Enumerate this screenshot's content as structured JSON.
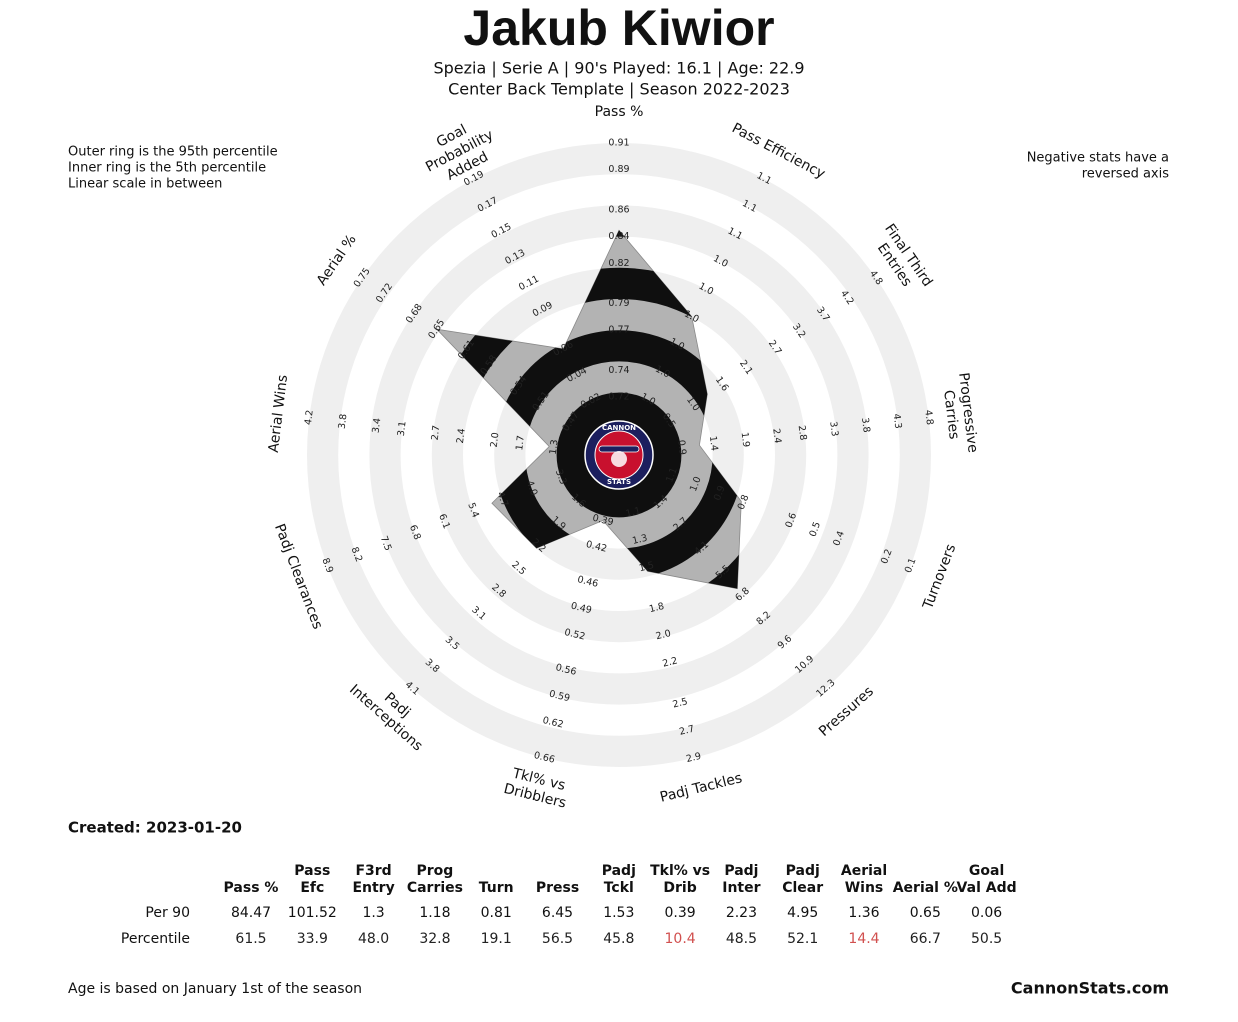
{
  "title": "Jakub Kiwior",
  "subtitle": "Spezia  | Serie A | 90's Played: 16.1 | Age: 22.9",
  "subtitle2": "Center Back Template | Season 2022-2023",
  "note_left": [
    "Outer ring is the 95th percentile",
    "Inner ring is the 5th percentile",
    "Linear scale in between"
  ],
  "note_right": [
    "Negative stats have a",
    "reversed axis"
  ],
  "created": "Created: 2023-01-20",
  "footer_left": "Age is based on January 1st of the season",
  "footer_right": "CannonStats.com",
  "logo": {
    "top": "CANNON",
    "bottom": "STATS"
  },
  "chart_data": {
    "type": "radar",
    "fill": "#b3b3b3",
    "band_color": "#0f0f0f",
    "ring_color": "#efefef",
    "axes": [
      {
        "name": [
          "Pass %"
        ],
        "lim": [
          0.7,
          0.91
        ],
        "ticks": [
          0.72,
          0.74,
          0.77,
          0.79,
          0.82,
          0.84,
          0.86,
          0.89,
          0.91
        ],
        "value": 0.8447
      },
      {
        "name": [
          "Pass Efficiency"
        ],
        "lim": [
          0.955,
          1.09
        ],
        "ticks": [
          {
            "value": 0.97,
            "label": "1.0"
          },
          {
            "value": 0.985,
            "label": "1.0"
          },
          {
            "value": 1.0,
            "label": "1.0"
          },
          {
            "value": 1.015,
            "label": "1.0"
          },
          {
            "value": 1.03,
            "label": "1.0"
          },
          {
            "value": 1.045,
            "label": "1.0"
          },
          {
            "value": 1.06,
            "label": "1.1"
          },
          {
            "value": 1.075,
            "label": "1.1"
          },
          {
            "value": 1.09,
            "label": "1.1"
          }
        ],
        "value": 1.0152
      },
      {
        "name": [
          "Final Third",
          "Entries"
        ],
        "lim": [
          0,
          4.8
        ],
        "ticks": [
          0.5,
          {
            "value": 1,
            "label": "1.0"
          },
          1.6,
          2.1,
          2.7,
          3.2,
          3.7,
          4.2,
          4.8
        ],
        "value": 1.3
      },
      {
        "name": [
          "Progressive",
          "Carries"
        ],
        "lim": [
          0.4,
          4.8
        ],
        "ticks": [
          0.9,
          1.4,
          1.9,
          2.4,
          2.8,
          3.3,
          3.8,
          4.3,
          4.8
        ],
        "value": 1.18
      },
      {
        "name": [
          "Turnovers"
        ],
        "lim": [
          1.2,
          0.1
        ],
        "ticks": [
          1.1,
          {
            "value": 1,
            "label": "1.0"
          },
          0.9,
          0.8,
          0.6,
          0.5,
          0.4,
          0.2,
          0.1
        ],
        "value": 0.81
      },
      {
        "name": [
          "Pressures"
        ],
        "lim": [
          0,
          12.3
        ],
        "ticks": [
          1.4,
          2.7,
          4.1,
          5.5,
          6.8,
          8.2,
          9.6,
          10.9,
          12.3
        ],
        "value": 6.45
      },
      {
        "name": [
          "Padj Tackles"
        ],
        "lim": [
          0.9,
          2.9
        ],
        "ticks": [
          1.1,
          1.3,
          1.5,
          1.8,
          {
            "value": 2,
            "label": "2.0"
          },
          2.2,
          2.5,
          2.7,
          2.9
        ],
        "value": 1.53
      },
      {
        "name": [
          "Tkl% vs",
          "Dribblers"
        ],
        "lim": [
          0.35,
          0.66
        ],
        "ticks": [
          0.39,
          0.42,
          0.46,
          0.49,
          0.52,
          0.56,
          0.59,
          0.62,
          0.66
        ],
        "value": 0.39
      },
      {
        "name": [
          "Padj",
          "Interceptions"
        ],
        "lim": [
          1.3,
          4.1
        ],
        "ticks": [
          1.6,
          1.9,
          2.2,
          2.5,
          2.8,
          3.1,
          3.5,
          3.8,
          4.1
        ],
        "value": 2.23
      },
      {
        "name": [
          "Padj Clearances"
        ],
        "lim": [
          2.6,
          8.9
        ],
        "ticks": [
          3.3,
          {
            "value": 4,
            "label": "4.0"
          },
          4.7,
          5.4,
          6.1,
          6.8,
          7.5,
          8.2,
          8.9
        ],
        "value": 4.95
      },
      {
        "name": [
          "Aerial Wins"
        ],
        "lim": [
          0.9,
          4.2
        ],
        "ticks": [
          1.3,
          1.7,
          {
            "value": 2,
            "label": "2.0"
          },
          2.4,
          2.7,
          3.1,
          3.4,
          3.8,
          4.2
        ],
        "value": 1.36
      },
      {
        "name": [
          "Aerial %"
        ],
        "lim": [
          0.44,
          0.75
        ],
        "ticks": [
          0.47,
          0.51,
          0.54,
          0.58,
          0.61,
          0.65,
          0.68,
          0.72,
          0.75
        ],
        "value": 0.65
      },
      {
        "name": [
          "Goal",
          "Probability",
          "Added"
        ],
        "lim": [
          0,
          0.19
        ],
        "ticks": [
          0.02,
          0.04,
          0.06,
          0.09,
          0.11,
          0.13,
          0.15,
          0.17,
          0.19
        ],
        "value": 0.06
      }
    ]
  },
  "table": {
    "header": [
      [
        "Pass %"
      ],
      [
        "Pass",
        "Efc"
      ],
      [
        "F3rd",
        "Entry"
      ],
      [
        "Prog",
        "Carries"
      ],
      [
        "Turn"
      ],
      [
        "Press"
      ],
      [
        "Padj",
        "Tckl"
      ],
      [
        "Tkl% vs",
        "Drib"
      ],
      [
        "Padj",
        "Inter"
      ],
      [
        "Padj",
        "Clear"
      ],
      [
        "Aerial",
        "Wins"
      ],
      [
        "Aerial %"
      ],
      [
        "Goal",
        "Val Add"
      ]
    ],
    "rows": [
      {
        "label": "Per 90",
        "cells": [
          "84.47",
          "101.52",
          "1.3",
          "1.18",
          "0.81",
          "6.45",
          "1.53",
          "0.39",
          "2.23",
          "4.95",
          "1.36",
          "0.65",
          "0.06"
        ]
      },
      {
        "label": "Percentile",
        "cells": [
          "61.5",
          "33.9",
          "48.0",
          "32.8",
          "19.1",
          "56.5",
          "45.8",
          "10.4",
          "48.5",
          "52.1",
          "14.4",
          "66.7",
          "50.5"
        ],
        "colors": [
          "#222222",
          "#222222",
          "#222222",
          "#222222",
          "#222222",
          "#222222",
          "#222222",
          "#d1504f",
          "#222222",
          "#222222",
          "#d1504f",
          "#222222",
          "#222222"
        ]
      }
    ]
  }
}
